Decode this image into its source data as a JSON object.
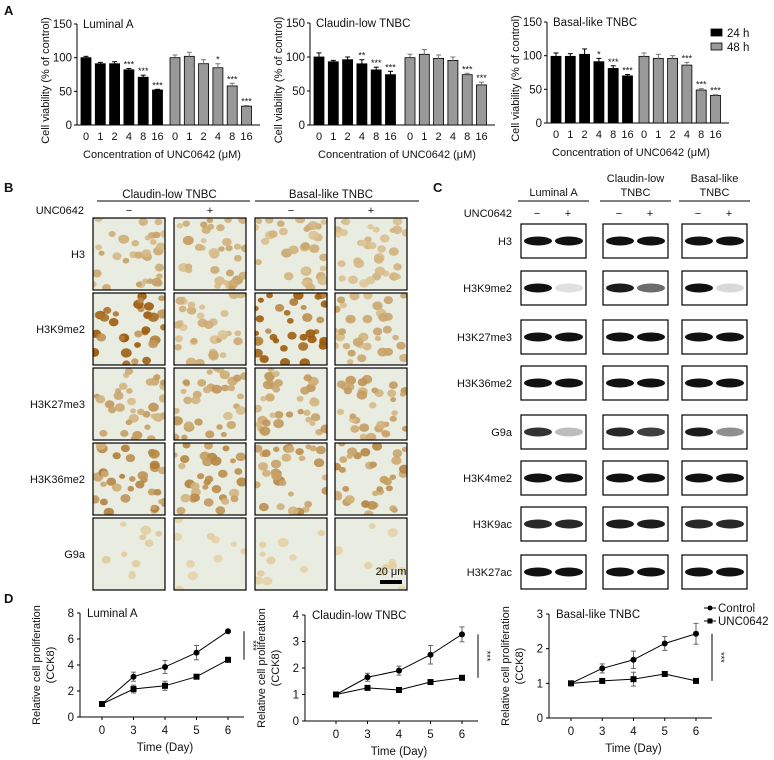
{
  "panel_labels": {
    "A": "A",
    "B": "B",
    "C": "C",
    "D": "D"
  },
  "colors": {
    "series_24h": "#000000",
    "series_48h": "#999999",
    "stain": "#b86a18",
    "micro_bg": "#e9ece0"
  },
  "chart_data": [
    {
      "type": "bar",
      "title": "Luminal A",
      "ylabel": "Cell viability (% of control)",
      "xlabel": "Concentration of UNC0642 (μM)",
      "ylim": [
        0,
        150
      ],
      "yticks": [
        "0",
        "50",
        "100",
        "150"
      ],
      "categories": [
        "0",
        "1",
        "2",
        "4",
        "8",
        "16"
      ],
      "series": [
        {
          "name": "24 h",
          "values": [
            100,
            91,
            91,
            82,
            71,
            52
          ],
          "errors": [
            2,
            2,
            3,
            2,
            3,
            1
          ],
          "significance": [
            "",
            "",
            "",
            "***",
            "***",
            "***"
          ]
        },
        {
          "name": "48 h",
          "values": [
            100,
            102,
            91,
            85,
            58,
            28
          ],
          "errors": [
            4,
            6,
            6,
            6,
            4,
            1
          ],
          "significance": [
            "",
            "",
            "",
            "*",
            "***",
            "***"
          ]
        }
      ]
    },
    {
      "type": "bar",
      "title": "Claudin-low TNBC",
      "ylabel": "Cell viability (% of control)",
      "xlabel": "Concentration of UNC0642 (μM)",
      "ylim": [
        0,
        150
      ],
      "yticks": [
        "0",
        "50",
        "100",
        "150"
      ],
      "categories": [
        "0",
        "1",
        "2",
        "4",
        "8",
        "16"
      ],
      "series": [
        {
          "name": "24 h",
          "values": [
            100,
            93,
            96,
            90,
            81,
            74
          ],
          "errors": [
            6,
            2,
            4,
            6,
            4,
            5
          ],
          "significance": [
            "",
            "",
            "",
            "**",
            "***",
            "***"
          ]
        },
        {
          "name": "48 h",
          "values": [
            99,
            104,
            98,
            95,
            74,
            59
          ],
          "errors": [
            5,
            7,
            5,
            5,
            2,
            4
          ],
          "significance": [
            "",
            "",
            "",
            "",
            "***",
            "***"
          ]
        }
      ]
    },
    {
      "type": "bar",
      "title": "Basal-like TNBC",
      "ylabel": "Cell viability (% of control)",
      "xlabel": "Concentration of UNC0642 (μM)",
      "ylim": [
        0,
        150
      ],
      "yticks": [
        "0",
        "50",
        "100",
        "150"
      ],
      "categories": [
        "0",
        "1",
        "2",
        "4",
        "8",
        "16"
      ],
      "legend": {
        "position": "top-right",
        "entries": [
          "24 h",
          "48 h"
        ]
      },
      "series": [
        {
          "name": "24 h",
          "values": [
            99,
            99,
            102,
            91,
            81,
            70
          ],
          "errors": [
            5,
            4,
            8,
            5,
            4,
            2
          ],
          "significance": [
            "",
            "",
            "",
            "*",
            "***",
            "***"
          ]
        },
        {
          "name": "48 h",
          "values": [
            99,
            96,
            96,
            86,
            49,
            41
          ],
          "errors": [
            5,
            6,
            4,
            4,
            2,
            1
          ],
          "significance": [
            "",
            "",
            "",
            "***",
            "***",
            "***"
          ]
        }
      ]
    },
    {
      "type": "line",
      "title": "Luminal A",
      "ylabel": "Relative cell proliferation (CCK8)",
      "xlabel": "Time (Day)",
      "x": [
        "0",
        "3",
        "4",
        "5",
        "6"
      ],
      "ylim": [
        0,
        8
      ],
      "yticks": [
        "0",
        "2",
        "4",
        "6",
        "8"
      ],
      "significance": "***",
      "series": [
        {
          "name": "Control",
          "values": [
            1,
            3.1,
            3.85,
            4.95,
            6.6
          ],
          "errors": [
            0.05,
            0.35,
            0.5,
            0.55,
            0.05
          ]
        },
        {
          "name": "UNC0642",
          "values": [
            1,
            2.15,
            2.4,
            3.1,
            4.4
          ],
          "errors": [
            0.05,
            0.3,
            0.35,
            0.1,
            0.1
          ]
        }
      ]
    },
    {
      "type": "line",
      "title": "Claudin-low TNBC",
      "ylabel": "Relative cell proliferation (CCK8)",
      "xlabel": "Time (Day)",
      "x": [
        "0",
        "3",
        "4",
        "5",
        "6"
      ],
      "ylim": [
        0,
        4
      ],
      "yticks": [
        "0",
        "1",
        "2",
        "3",
        "4"
      ],
      "significance": "***",
      "series": [
        {
          "name": "Control",
          "values": [
            1,
            1.65,
            1.9,
            2.5,
            3.27
          ],
          "errors": [
            0.02,
            0.15,
            0.17,
            0.35,
            0.28
          ]
        },
        {
          "name": "UNC0642",
          "values": [
            1,
            1.25,
            1.17,
            1.47,
            1.63
          ],
          "errors": [
            0.02,
            0.07,
            0.03,
            0.03,
            0.07
          ]
        }
      ]
    },
    {
      "type": "line",
      "title": "Basal-like TNBC",
      "ylabel": "Relative cell proliferation (CCK8)",
      "xlabel": "Time (Day)",
      "x": [
        "0",
        "3",
        "4",
        "5",
        "6"
      ],
      "ylim": [
        0,
        3
      ],
      "yticks": [
        "0",
        "1",
        "2",
        "3"
      ],
      "significance": "***",
      "legend": {
        "position": "top-right",
        "entries": [
          "Control",
          "UNC0642"
        ]
      },
      "series": [
        {
          "name": "Control",
          "values": [
            1,
            1.43,
            1.68,
            2.15,
            2.43
          ],
          "errors": [
            0.02,
            0.13,
            0.25,
            0.2,
            0.3
          ]
        },
        {
          "name": "UNC0642",
          "values": [
            1,
            1.07,
            1.12,
            1.27,
            1.07
          ],
          "errors": [
            0.02,
            0.03,
            0.2,
            0.03,
            0.02
          ]
        }
      ]
    }
  ],
  "ihc": {
    "groups": [
      "Claudin-low TNBC",
      "Basal-like TNBC"
    ],
    "treatment_label": "UNC0642",
    "treatments": [
      "−",
      "+",
      "−",
      "+"
    ],
    "rows": [
      {
        "label": "H3",
        "stain_intensity": [
          0.35,
          0.35,
          0.3,
          0.25
        ]
      },
      {
        "label": "H3K9me2",
        "stain_intensity": [
          0.85,
          0.3,
          0.95,
          0.35
        ]
      },
      {
        "label": "H3K27me3",
        "stain_intensity": [
          0.4,
          0.4,
          0.4,
          0.4
        ]
      },
      {
        "label": "H3K36me2",
        "stain_intensity": [
          0.55,
          0.5,
          0.5,
          0.5
        ]
      },
      {
        "label": "G9a",
        "stain_intensity": [
          0.12,
          0.08,
          0.1,
          0.08
        ]
      }
    ],
    "scale_bar": "20 μm"
  },
  "western": {
    "groups": [
      "Luminal A",
      "Claudin-low TNBC",
      "Basal-like TNBC"
    ],
    "group_lines": [
      [
        "Luminal A"
      ],
      [
        "Claudin-low",
        "TNBC"
      ],
      [
        "Basal-like",
        "TNBC"
      ]
    ],
    "treatment_label": "UNC0642",
    "treatments": [
      "−",
      "+"
    ],
    "rows": [
      {
        "label": "H3",
        "band_intensity": [
          [
            0.95,
            0.95
          ],
          [
            0.95,
            0.95
          ],
          [
            0.95,
            0.95
          ]
        ]
      },
      {
        "label": "H3K9me2",
        "band_intensity": [
          [
            0.95,
            0.05
          ],
          [
            0.9,
            0.55
          ],
          [
            0.95,
            0.08
          ]
        ]
      },
      {
        "label": "H3K27me3",
        "band_intensity": [
          [
            0.95,
            0.95
          ],
          [
            0.95,
            0.95
          ],
          [
            0.95,
            0.95
          ]
        ]
      },
      {
        "label": "H3K36me2",
        "band_intensity": [
          [
            0.95,
            0.95
          ],
          [
            0.95,
            0.95
          ],
          [
            0.95,
            0.95
          ]
        ]
      },
      {
        "label": "G9a",
        "band_intensity": [
          [
            0.8,
            0.2
          ],
          [
            0.85,
            0.75
          ],
          [
            0.9,
            0.4
          ]
        ]
      },
      {
        "label": "H3K4me2",
        "band_intensity": [
          [
            0.95,
            0.95
          ],
          [
            0.95,
            0.95
          ],
          [
            0.95,
            0.95
          ]
        ]
      },
      {
        "label": "H3K9ac",
        "band_intensity": [
          [
            0.85,
            0.85
          ],
          [
            0.9,
            0.9
          ],
          [
            0.85,
            0.85
          ]
        ]
      },
      {
        "label": "H3K27ac",
        "band_intensity": [
          [
            0.95,
            0.95
          ],
          [
            0.95,
            0.95
          ],
          [
            0.95,
            0.95
          ]
        ]
      }
    ]
  }
}
